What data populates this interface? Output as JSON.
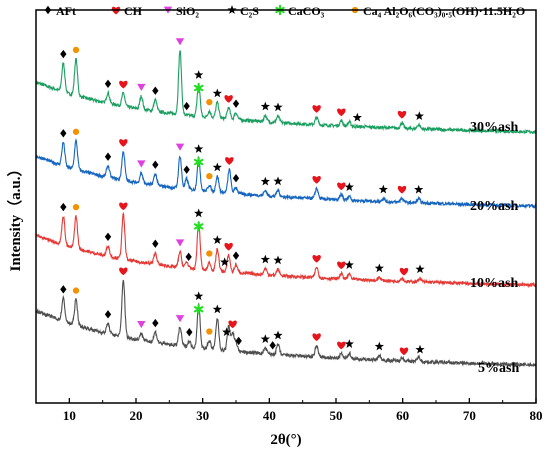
{
  "chart_data": {
    "type": "line",
    "xlabel": "2θ(°)",
    "ylabel": "Intensity（a.u.）",
    "xlim": [
      5,
      80
    ],
    "xticks": [
      10,
      20,
      30,
      40,
      50,
      60,
      70,
      80
    ],
    "grid": false,
    "legend": {
      "placement": "top",
      "entries": [
        {
          "marker": "diamond",
          "label": "AFt",
          "color": "#000000"
        },
        {
          "marker": "heart",
          "label": "CH",
          "color": "#e8141b"
        },
        {
          "marker": "triangle-down",
          "label": "SiO₂",
          "color": "#e040e0"
        },
        {
          "marker": "star",
          "label": "C₂S",
          "color": "#000000"
        },
        {
          "marker": "asterisk",
          "label": "CaCO₃",
          "color": "#22dd22"
        },
        {
          "marker": "circle",
          "label": "Ca₄ Al₂O₆(CO₃)₀.₅(OH)·11.5H₂O",
          "color": "#f39200"
        }
      ]
    },
    "series": [
      {
        "name": "30%ash",
        "color": "#1a9e60",
        "baseline": [
          [
            5,
            1.0
          ],
          [
            10,
            0.78
          ],
          [
            15,
            0.62
          ],
          [
            20,
            0.5
          ],
          [
            25,
            0.41
          ],
          [
            30,
            0.34
          ],
          [
            40,
            0.24
          ],
          [
            50,
            0.17
          ],
          [
            60,
            0.12
          ],
          [
            70,
            0.08
          ],
          [
            80,
            0.05
          ]
        ],
        "peaks": [
          [
            9.1,
            0.55
          ],
          [
            11.0,
            0.7
          ],
          [
            15.8,
            0.2
          ],
          [
            18.1,
            0.25
          ],
          [
            20.8,
            0.25
          ],
          [
            22.9,
            0.22
          ],
          [
            26.6,
            1.22
          ],
          [
            29.4,
            0.62
          ],
          [
            31.0,
            0.12
          ],
          [
            32.2,
            0.3
          ],
          [
            33.9,
            0.22
          ],
          [
            35.0,
            0.13
          ],
          [
            39.4,
            0.12
          ],
          [
            41.3,
            0.12
          ],
          [
            47.1,
            0.14
          ],
          [
            50.8,
            0.1
          ],
          [
            52.0,
            0.08
          ],
          [
            59.9,
            0.1
          ],
          [
            62.4,
            0.08
          ]
        ],
        "markers": [
          {
            "x": 9.1,
            "m": "diamond"
          },
          {
            "x": 11.0,
            "m": "circle"
          },
          {
            "x": 15.8,
            "m": "diamond"
          },
          {
            "x": 18.1,
            "m": "heart"
          },
          {
            "x": 20.8,
            "m": "triangle-down"
          },
          {
            "x": 22.9,
            "m": "diamond"
          },
          {
            "x": 26.6,
            "m": "triangle-down"
          },
          {
            "x": 27.6,
            "m": "diamond"
          },
          {
            "x": 29.4,
            "m": "star"
          },
          {
            "x": 29.4,
            "m": "asterisk"
          },
          {
            "x": 31.0,
            "m": "circle"
          },
          {
            "x": 32.2,
            "m": "star"
          },
          {
            "x": 33.9,
            "m": "heart"
          },
          {
            "x": 35.0,
            "m": "diamond"
          },
          {
            "x": 39.4,
            "m": "star"
          },
          {
            "x": 41.3,
            "m": "star"
          },
          {
            "x": 47.1,
            "m": "heart"
          },
          {
            "x": 50.8,
            "m": "heart"
          },
          {
            "x": 53.2,
            "m": "star"
          },
          {
            "x": 59.9,
            "m": "heart"
          },
          {
            "x": 62.5,
            "m": "star"
          }
        ]
      },
      {
        "name": "20%ash",
        "color": "#1565c0",
        "baseline": [
          [
            5,
            1.0
          ],
          [
            10,
            0.78
          ],
          [
            15,
            0.62
          ],
          [
            20,
            0.5
          ],
          [
            25,
            0.41
          ],
          [
            30,
            0.34
          ],
          [
            40,
            0.24
          ],
          [
            50,
            0.17
          ],
          [
            60,
            0.12
          ],
          [
            70,
            0.08
          ],
          [
            80,
            0.05
          ]
        ],
        "peaks": [
          [
            9.1,
            0.45
          ],
          [
            11.0,
            0.55
          ],
          [
            15.8,
            0.22
          ],
          [
            18.1,
            0.55
          ],
          [
            20.8,
            0.2
          ],
          [
            22.9,
            0.22
          ],
          [
            26.6,
            0.62
          ],
          [
            27.6,
            0.2
          ],
          [
            29.4,
            0.62
          ],
          [
            31.0,
            0.12
          ],
          [
            32.2,
            0.3
          ],
          [
            34.0,
            0.45
          ],
          [
            35.0,
            0.12
          ],
          [
            39.4,
            0.1
          ],
          [
            41.3,
            0.12
          ],
          [
            47.1,
            0.2
          ],
          [
            50.8,
            0.1
          ],
          [
            52.0,
            0.08
          ],
          [
            57.1,
            0.06
          ],
          [
            59.9,
            0.08
          ],
          [
            62.4,
            0.08
          ]
        ],
        "markers": [
          {
            "x": 9.1,
            "m": "diamond"
          },
          {
            "x": 11.0,
            "m": "circle"
          },
          {
            "x": 15.8,
            "m": "diamond"
          },
          {
            "x": 18.1,
            "m": "heart"
          },
          {
            "x": 20.8,
            "m": "triangle-down"
          },
          {
            "x": 22.9,
            "m": "diamond"
          },
          {
            "x": 26.6,
            "m": "triangle-down"
          },
          {
            "x": 27.6,
            "m": "diamond"
          },
          {
            "x": 29.4,
            "m": "star"
          },
          {
            "x": 29.4,
            "m": "asterisk"
          },
          {
            "x": 31.0,
            "m": "circle"
          },
          {
            "x": 32.2,
            "m": "star"
          },
          {
            "x": 34.0,
            "m": "heart"
          },
          {
            "x": 35.0,
            "m": "diamond"
          },
          {
            "x": 39.4,
            "m": "star"
          },
          {
            "x": 41.3,
            "m": "star"
          },
          {
            "x": 47.1,
            "m": "heart"
          },
          {
            "x": 50.8,
            "m": "heart"
          },
          {
            "x": 52.0,
            "m": "star"
          },
          {
            "x": 57.1,
            "m": "star"
          },
          {
            "x": 59.9,
            "m": "heart"
          },
          {
            "x": 62.4,
            "m": "star"
          }
        ]
      },
      {
        "name": "10%ash",
        "color": "#e53935",
        "baseline": [
          [
            5,
            1.0
          ],
          [
            10,
            0.78
          ],
          [
            15,
            0.62
          ],
          [
            20,
            0.5
          ],
          [
            25,
            0.41
          ],
          [
            30,
            0.34
          ],
          [
            40,
            0.24
          ],
          [
            50,
            0.17
          ],
          [
            60,
            0.12
          ],
          [
            70,
            0.08
          ],
          [
            80,
            0.05
          ]
        ],
        "peaks": [
          [
            9.1,
            0.55
          ],
          [
            11.0,
            0.62
          ],
          [
            15.8,
            0.2
          ],
          [
            18.1,
            0.85
          ],
          [
            22.9,
            0.22
          ],
          [
            26.6,
            0.3
          ],
          [
            27.6,
            0.12
          ],
          [
            29.4,
            0.9
          ],
          [
            31.0,
            0.15
          ],
          [
            32.2,
            0.42
          ],
          [
            33.9,
            0.32
          ],
          [
            35.0,
            0.15
          ],
          [
            39.4,
            0.12
          ],
          [
            41.3,
            0.12
          ],
          [
            47.1,
            0.2
          ],
          [
            50.8,
            0.1
          ],
          [
            52.0,
            0.1
          ],
          [
            56.5,
            0.06
          ],
          [
            59.9,
            0.06
          ],
          [
            62.6,
            0.07
          ]
        ],
        "markers": [
          {
            "x": 9.1,
            "m": "diamond"
          },
          {
            "x": 11.0,
            "m": "circle"
          },
          {
            "x": 15.8,
            "m": "diamond"
          },
          {
            "x": 18.1,
            "m": "heart"
          },
          {
            "x": 22.9,
            "m": "diamond"
          },
          {
            "x": 26.6,
            "m": "triangle-down"
          },
          {
            "x": 27.9,
            "m": "diamond"
          },
          {
            "x": 29.4,
            "m": "star"
          },
          {
            "x": 29.4,
            "m": "asterisk"
          },
          {
            "x": 31.0,
            "m": "circle"
          },
          {
            "x": 32.2,
            "m": "star"
          },
          {
            "x": 33.3,
            "m": "star"
          },
          {
            "x": 33.9,
            "m": "heart"
          },
          {
            "x": 35.0,
            "m": "diamond"
          },
          {
            "x": 39.4,
            "m": "star"
          },
          {
            "x": 41.3,
            "m": "star"
          },
          {
            "x": 47.1,
            "m": "heart"
          },
          {
            "x": 50.8,
            "m": "heart"
          },
          {
            "x": 52.0,
            "m": "star"
          },
          {
            "x": 56.5,
            "m": "star"
          },
          {
            "x": 60.2,
            "m": "heart"
          },
          {
            "x": 62.6,
            "m": "star"
          }
        ]
      },
      {
        "name": "5%ash",
        "color": "#4d4d4d",
        "baseline": [
          [
            5,
            1.0
          ],
          [
            10,
            0.78
          ],
          [
            15,
            0.62
          ],
          [
            20,
            0.5
          ],
          [
            25,
            0.41
          ],
          [
            30,
            0.34
          ],
          [
            40,
            0.24
          ],
          [
            50,
            0.17
          ],
          [
            60,
            0.12
          ],
          [
            70,
            0.08
          ],
          [
            80,
            0.05
          ]
        ],
        "peaks": [
          [
            9.1,
            0.4
          ],
          [
            11.0,
            0.45
          ],
          [
            15.8,
            0.18
          ],
          [
            18.1,
            1.0
          ],
          [
            20.8,
            0.12
          ],
          [
            22.9,
            0.18
          ],
          [
            26.6,
            0.32
          ],
          [
            28.0,
            0.1
          ],
          [
            29.4,
            0.75
          ],
          [
            31.0,
            0.15
          ],
          [
            32.2,
            0.55
          ],
          [
            33.9,
            0.42
          ],
          [
            34.5,
            0.3
          ],
          [
            35.0,
            0.15
          ],
          [
            39.4,
            0.1
          ],
          [
            41.3,
            0.18
          ],
          [
            47.1,
            0.2
          ],
          [
            50.8,
            0.08
          ],
          [
            52.0,
            0.1
          ],
          [
            56.5,
            0.08
          ],
          [
            59.9,
            0.06
          ],
          [
            62.4,
            0.08
          ]
        ],
        "markers": [
          {
            "x": 9.1,
            "m": "diamond"
          },
          {
            "x": 11.0,
            "m": "circle"
          },
          {
            "x": 15.8,
            "m": "diamond"
          },
          {
            "x": 18.1,
            "m": "heart"
          },
          {
            "x": 20.8,
            "m": "triangle-down"
          },
          {
            "x": 22.9,
            "m": "diamond"
          },
          {
            "x": 26.6,
            "m": "triangle-down"
          },
          {
            "x": 28.0,
            "m": "diamond"
          },
          {
            "x": 29.4,
            "m": "star"
          },
          {
            "x": 29.4,
            "m": "asterisk"
          },
          {
            "x": 31.0,
            "m": "circle"
          },
          {
            "x": 32.2,
            "m": "star"
          },
          {
            "x": 33.6,
            "m": "star"
          },
          {
            "x": 34.5,
            "m": "heart"
          },
          {
            "x": 35.4,
            "m": "diamond"
          },
          {
            "x": 39.4,
            "m": "star"
          },
          {
            "x": 40.5,
            "m": "diamond"
          },
          {
            "x": 41.3,
            "m": "star"
          },
          {
            "x": 47.1,
            "m": "heart"
          },
          {
            "x": 50.8,
            "m": "heart"
          },
          {
            "x": 52.0,
            "m": "star"
          },
          {
            "x": 56.5,
            "m": "star"
          },
          {
            "x": 60.2,
            "m": "heart"
          },
          {
            "x": 62.6,
            "m": "star"
          }
        ]
      }
    ]
  }
}
